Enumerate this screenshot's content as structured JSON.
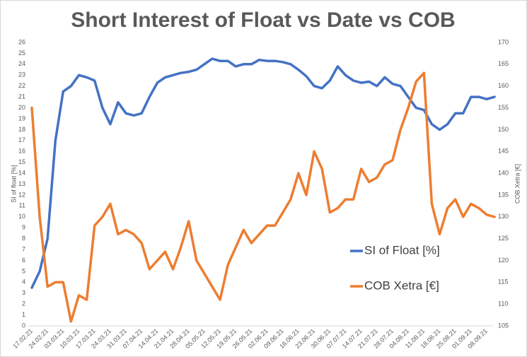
{
  "chart_data": {
    "type": "line",
    "title": "Short Interest of Float vs Date vs COB",
    "ylabel": "SI of float [%]",
    "y2label": "COB Xetra [€]",
    "categories": [
      "17.02.21",
      null,
      "24.02.21",
      null,
      "03.03.21",
      null,
      "10.03.21",
      null,
      "17.03.21",
      null,
      "24.03.21",
      null,
      "31.03.21",
      null,
      "07.04.21",
      null,
      "14.04.21",
      null,
      "21.04.21",
      null,
      "28.04.21",
      null,
      "05.05.21",
      null,
      "12.05.21",
      null,
      "19.05.21",
      null,
      "26.05.21",
      null,
      "02.06.21",
      null,
      "09.06.21",
      null,
      "16.06.21",
      null,
      "23.06.21",
      null,
      "30.06.21",
      null,
      "07.07.21",
      null,
      "14.07.21",
      null,
      "21.07.21",
      null,
      "28.07.21",
      null,
      "04.08.21",
      null,
      "11.08.21",
      null,
      "18.08.21",
      null,
      "25.08.21",
      null,
      "01.09.21",
      null,
      "08.09.21",
      null
    ],
    "series": [
      {
        "name": "SI of Float [%]",
        "color": "#4472c4",
        "axis": "y",
        "values": [
          3.5,
          5,
          8,
          17,
          21.5,
          22,
          23,
          22.8,
          22.5,
          20,
          18.5,
          20.5,
          19.5,
          19.3,
          19.5,
          21,
          22.3,
          22.8,
          23,
          23.2,
          23.3,
          23.5,
          24,
          24.5,
          24.3,
          24.3,
          23.8,
          24,
          24,
          24.4,
          24.3,
          24.3,
          24.2,
          24,
          23.5,
          22.9,
          22,
          21.8,
          22.5,
          23.8,
          23,
          22.5,
          22.3,
          22.4,
          22,
          22.8,
          22.2,
          22,
          21,
          20,
          19.8,
          18.5,
          18,
          18.5,
          19.5,
          19.5,
          21,
          21,
          20.8,
          21
        ]
      },
      {
        "name": "COB Xetra [€]",
        "color": "#ed7d31",
        "axis": "y2",
        "values": [
          155,
          130,
          114,
          115,
          115,
          106,
          112,
          111,
          128,
          130,
          133,
          126,
          127,
          126,
          124,
          118,
          120,
          122,
          118,
          123,
          129,
          120,
          117,
          114,
          111,
          119,
          123,
          127,
          124,
          126,
          128,
          128,
          131,
          134,
          140,
          135,
          145,
          141,
          131,
          132,
          134,
          134,
          141,
          138,
          139,
          142,
          143,
          150,
          155,
          161,
          163,
          133,
          126,
          132,
          134,
          130,
          133,
          132,
          130.5,
          130
        ]
      }
    ],
    "ylim": [
      0,
      26
    ],
    "yticks": [
      0,
      1,
      2,
      3,
      4,
      5,
      6,
      7,
      8,
      9,
      10,
      11,
      12,
      13,
      14,
      15,
      16,
      17,
      18,
      19,
      20,
      21,
      22,
      23,
      24,
      25,
      26
    ],
    "y2lim": [
      105,
      170
    ],
    "y2ticks": [
      105,
      110,
      115,
      120,
      125,
      130,
      135,
      140,
      145,
      150,
      155,
      160,
      165,
      170
    ],
    "legend": "right",
    "grid": false
  }
}
